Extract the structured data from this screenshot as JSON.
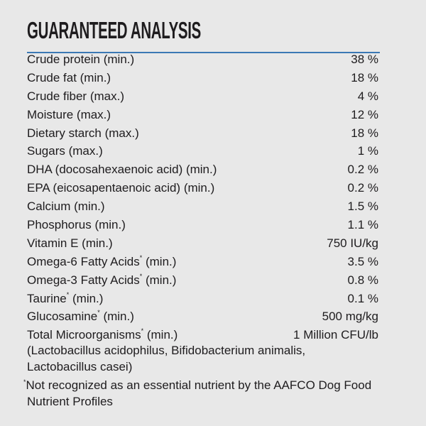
{
  "title": "GUARANTEED ANALYSIS",
  "accent_color": "#3b78b4",
  "rows": [
    {
      "label": "Crude protein (min.)",
      "value": "38 %"
    },
    {
      "label": "Crude fat (min.)",
      "value": "18 %"
    },
    {
      "label": "Crude fiber (max.)",
      "value": "4 %"
    },
    {
      "label": "Moisture (max.)",
      "value": "12 %"
    },
    {
      "label": "Dietary starch (max.)",
      "value": "18 %"
    },
    {
      "label": "Sugars (max.)",
      "value": "1 %"
    },
    {
      "label": "DHA (docosahexaenoic acid) (min.)",
      "value": "0.2 %"
    },
    {
      "label": "EPA (eicosapentaenoic acid) (min.)",
      "value": "0.2 %"
    },
    {
      "label": "Calcium (min.)",
      "value": "1.5 %"
    },
    {
      "label": "Phosphorus (min.)",
      "value": "1.1 %"
    },
    {
      "label": "Vitamin E (min.)",
      "value": "750 IU/kg"
    },
    {
      "label": "Omega-6 Fatty Acids",
      "star": "*",
      "suffix": " (min.)",
      "value": "3.5 %"
    },
    {
      "label": "Omega-3 Fatty Acids",
      "star": "*",
      "suffix": " (min.)",
      "value": "0.8 %"
    },
    {
      "label": "Taurine",
      "star": "*",
      "suffix": " (min.)",
      "value": "0.1 %"
    },
    {
      "label": "Glucosamine",
      "star": "*",
      "suffix": " (min.)",
      "value": "500 mg/kg"
    },
    {
      "label": "Total Microorganisms",
      "star": "*",
      "suffix": " (min.)",
      "value": "1 Million CFU/lb"
    }
  ],
  "microorganisms_note": "(Lactobacillus acidophilus, Bifidobacterium animalis, Lactobacillus casei)",
  "footnote_star": "*",
  "footnote": "Not recognized as an essential nutrient by the AAFCO Dog Food Nutrient Profiles"
}
